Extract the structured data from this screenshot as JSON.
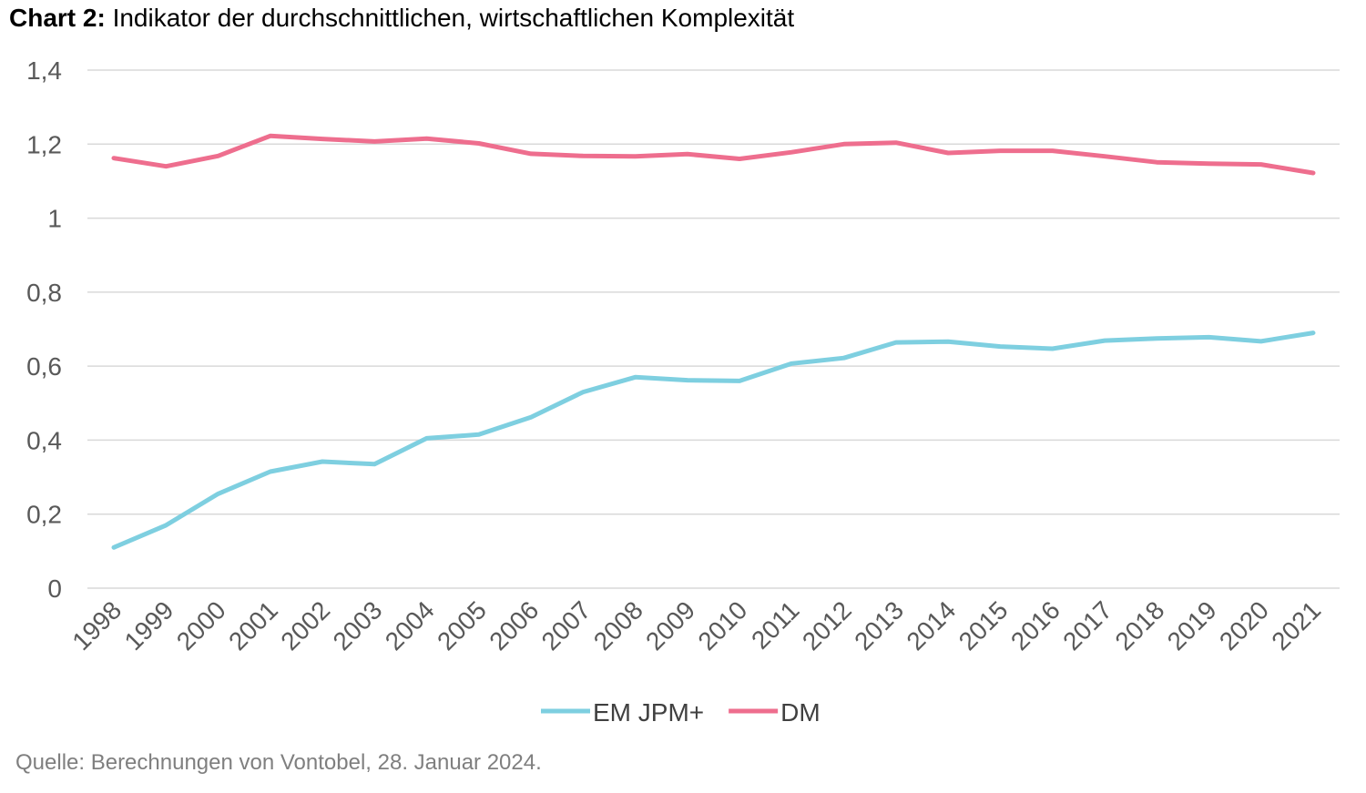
{
  "title": {
    "prefix": "Chart 2:",
    "text": "Indikator der durchschnittlichen, wirtschaftlichen Komplexität"
  },
  "source": "Quelle: Berechnungen von Vontobel, 28. Januar 2024.",
  "chart_data": {
    "type": "line",
    "x": [
      "1998",
      "1999",
      "2000",
      "2001",
      "2002",
      "2003",
      "2004",
      "2005",
      "2006",
      "2007",
      "2008",
      "2009",
      "2010",
      "2011",
      "2012",
      "2013",
      "2014",
      "2015",
      "2016",
      "2017",
      "2018",
      "2019",
      "2020",
      "2021"
    ],
    "series": [
      {
        "name": "EM JPM+",
        "color": "#7ecfe0",
        "values": [
          0.11,
          0.17,
          0.255,
          0.315,
          0.342,
          0.335,
          0.405,
          0.415,
          0.462,
          0.53,
          0.57,
          0.562,
          0.56,
          0.607,
          0.622,
          0.664,
          0.666,
          0.653,
          0.647,
          0.669,
          0.675,
          0.678,
          0.667,
          0.69
        ]
      },
      {
        "name": "DM",
        "color": "#ee6e8e",
        "values": [
          1.162,
          1.14,
          1.168,
          1.222,
          1.214,
          1.207,
          1.215,
          1.202,
          1.174,
          1.168,
          1.167,
          1.173,
          1.16,
          1.178,
          1.2,
          1.204,
          1.176,
          1.182,
          1.182,
          1.167,
          1.151,
          1.147,
          1.145,
          1.122
        ]
      }
    ],
    "ylim": [
      0,
      1.4
    ],
    "yticks": [
      {
        "value": 0,
        "label": "0"
      },
      {
        "value": 0.2,
        "label": "0,2"
      },
      {
        "value": 0.4,
        "label": "0,4"
      },
      {
        "value": 0.6,
        "label": "0,6"
      },
      {
        "value": 0.8,
        "label": "0,8"
      },
      {
        "value": 1,
        "label": "1"
      },
      {
        "value": 1.2,
        "label": "1,2"
      },
      {
        "value": 1.4,
        "label": "1,4"
      }
    ],
    "grid": true,
    "gridColor": "#d9d9d9",
    "legend": "bottom-center"
  }
}
